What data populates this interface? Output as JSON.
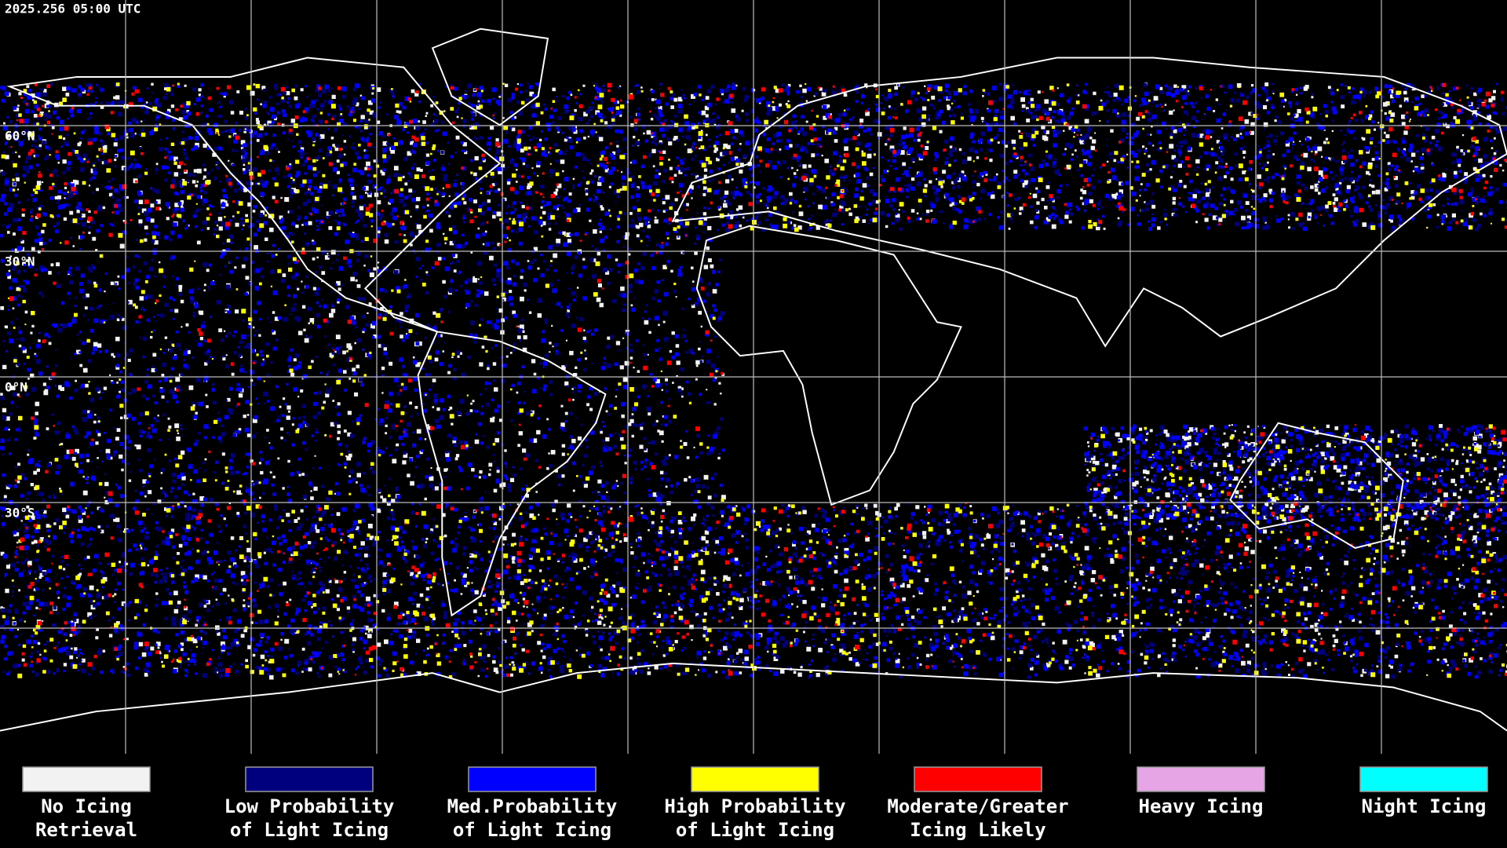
{
  "header": {
    "timestamp": "2025.256 05:00 UTC"
  },
  "map": {
    "lat_labels": [
      "60°N",
      "30°N",
      "0°N",
      "30°S"
    ]
  },
  "legend": {
    "items": [
      {
        "lines": [
          "No Icing",
          "Retrieval"
        ],
        "color": "#f2f2f2"
      },
      {
        "lines": [
          "Low Probability",
          "of Light Icing"
        ],
        "color": "#00007f"
      },
      {
        "lines": [
          "Med.Probability",
          "of Light Icing"
        ],
        "color": "#0000ff"
      },
      {
        "lines": [
          "High Probability",
          "of Light Icing"
        ],
        "color": "#ffff00"
      },
      {
        "lines": [
          "Moderate/Greater",
          "Icing Likely"
        ],
        "color": "#ff0000"
      },
      {
        "lines": [
          "Heavy Icing"
        ],
        "color": "#e6a6e6"
      },
      {
        "lines": [
          "Night Icing"
        ],
        "color": "#00ffff"
      }
    ]
  }
}
